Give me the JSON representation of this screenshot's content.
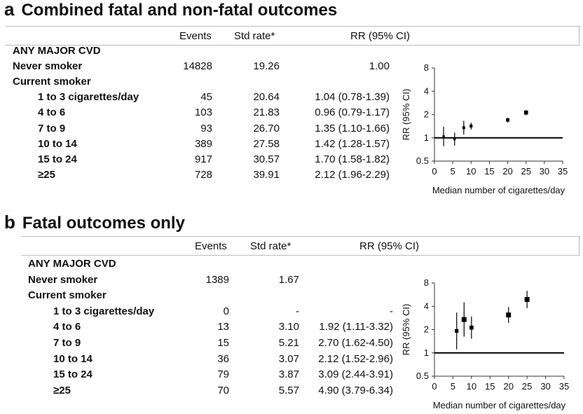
{
  "panels": [
    {
      "letter": "a",
      "title": "Combined fatal and non-fatal outcomes",
      "headers": {
        "events": "Events",
        "std_rate": "Std rate*",
        "rr": "RR (95% CI)"
      },
      "rows": [
        {
          "label": "ANY MAJOR CVD",
          "indent": 0,
          "events": "",
          "rate": "",
          "rr": ""
        },
        {
          "label": "Never smoker",
          "indent": 0,
          "events": "14828",
          "rate": "19.26",
          "rr": "1.00"
        },
        {
          "label": "Current smoker",
          "indent": 0,
          "events": "",
          "rate": "",
          "rr": ""
        },
        {
          "label": "1 to 3 cigarettes/day",
          "indent": 1,
          "events": "45",
          "rate": "20.64",
          "rr": "1.04 (0.78-1.39)"
        },
        {
          "label": "4 to 6",
          "indent": 1,
          "events": "103",
          "rate": "21.83",
          "rr": "0.96 (0.79-1.17)"
        },
        {
          "label": "7 to 9",
          "indent": 1,
          "events": "93",
          "rate": "26.70",
          "rr": "1.35 (1.10-1.66)"
        },
        {
          "label": "10 to 14",
          "indent": 1,
          "events": "389",
          "rate": "27.58",
          "rr": "1.42 (1.28-1.57)"
        },
        {
          "label": "15 to 24",
          "indent": 1,
          "events": "917",
          "rate": "30.57",
          "rr": "1.70 (1.58-1.82)"
        },
        {
          "label": "≥25",
          "indent": 1,
          "events": "728",
          "rate": "39.91",
          "rr": "2.12 (1.96-2.29)"
        }
      ]
    },
    {
      "letter": "b",
      "title": "Fatal outcomes only",
      "headers": {
        "events": "Events",
        "std_rate": "Std rate*",
        "rr": "RR (95% CI)"
      },
      "rows": [
        {
          "label": "ANY MAJOR CVD",
          "indent": 0,
          "events": "",
          "rate": "",
          "rr": ""
        },
        {
          "label": "Never smoker",
          "indent": 0,
          "events": "1389",
          "rate": "1.67",
          "rr": ""
        },
        {
          "label": "Current smoker",
          "indent": 0,
          "events": "",
          "rate": "",
          "rr": ""
        },
        {
          "label": "1 to 3 cigarettes/day",
          "indent": 1,
          "events": "0",
          "rate": "-",
          "rr": "-"
        },
        {
          "label": "4 to 6",
          "indent": 1,
          "events": "13",
          "rate": "3.10",
          "rr": "1.92 (1.11-3.32)"
        },
        {
          "label": "7 to 9",
          "indent": 1,
          "events": "15",
          "rate": "5.21",
          "rr": "2.70 (1.62-4.50)"
        },
        {
          "label": "10 to 14",
          "indent": 1,
          "events": "36",
          "rate": "3.07",
          "rr": "2.12 (1.52-2.96)"
        },
        {
          "label": "15 to 24",
          "indent": 1,
          "events": "79",
          "rate": "3.87",
          "rr": "3.09 (2.44-3.91)"
        },
        {
          "label": "≥25",
          "indent": 1,
          "events": "70",
          "rate": "5.57",
          "rr": "4.90 (3.79-6.34)"
        }
      ]
    }
  ],
  "chart_data": [
    {
      "type": "scatter",
      "xlabel": "Median number of cigarettes/day",
      "ylabel": "RR (95% CI)",
      "y_scale": "log",
      "xlim": [
        0,
        35
      ],
      "ylim": [
        0.5,
        8
      ],
      "xticks": [
        "0",
        "5",
        "10",
        "15",
        "20",
        "25",
        "30",
        "35"
      ],
      "yticks": [
        "0.5",
        "1",
        "2",
        "4",
        "8"
      ],
      "reference_line": 1,
      "points": [
        {
          "x": 2.5,
          "y": 1.04,
          "lo": 0.78,
          "hi": 1.39
        },
        {
          "x": 5.5,
          "y": 0.96,
          "lo": 0.79,
          "hi": 1.17
        },
        {
          "x": 8,
          "y": 1.35,
          "lo": 1.1,
          "hi": 1.66
        },
        {
          "x": 10,
          "y": 1.42,
          "lo": 1.28,
          "hi": 1.57
        },
        {
          "x": 20,
          "y": 1.7,
          "lo": 1.58,
          "hi": 1.82
        },
        {
          "x": 25,
          "y": 2.12,
          "lo": 1.96,
          "hi": 2.29
        }
      ]
    },
    {
      "type": "scatter",
      "xlabel": "Median number of cigarettes/day",
      "ylabel": "RR (95% CI)",
      "y_scale": "log",
      "xlim": [
        0,
        35
      ],
      "ylim": [
        0.5,
        8
      ],
      "xticks": [
        "0",
        "5",
        "10",
        "15",
        "20",
        "25",
        "30",
        "35"
      ],
      "yticks": [
        "0.5",
        "1",
        "2",
        "4",
        "8"
      ],
      "reference_line": 1,
      "points": [
        {
          "x": 6,
          "y": 1.92,
          "lo": 1.11,
          "hi": 3.32
        },
        {
          "x": 8,
          "y": 2.7,
          "lo": 1.62,
          "hi": 4.5
        },
        {
          "x": 10,
          "y": 2.12,
          "lo": 1.52,
          "hi": 2.96
        },
        {
          "x": 20,
          "y": 3.09,
          "lo": 2.44,
          "hi": 3.91
        },
        {
          "x": 25,
          "y": 4.9,
          "lo": 3.79,
          "hi": 6.34
        }
      ]
    }
  ]
}
